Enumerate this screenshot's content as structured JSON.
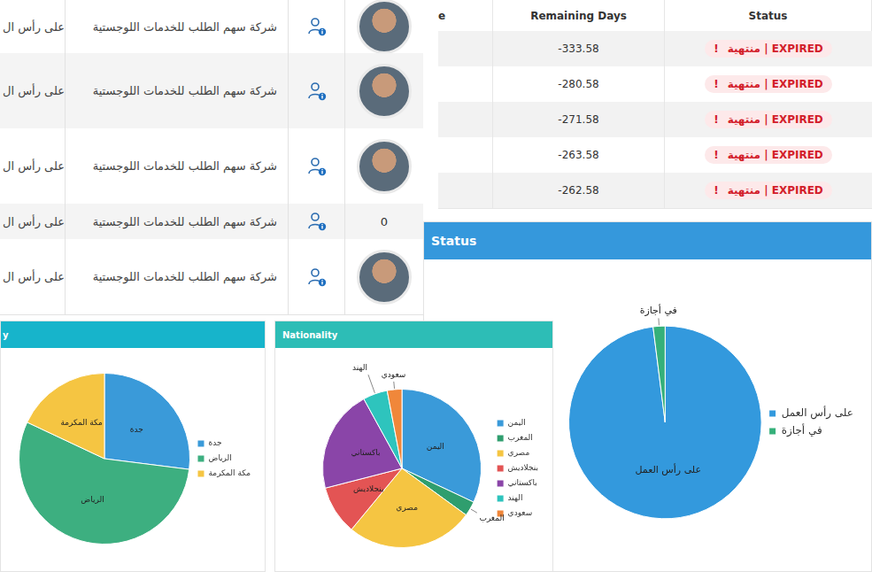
{
  "left_table": {
    "rows": [
      {
        "status": "على رأس ال",
        "company": "شركة سهم الطلب للخدمات اللوجستية"
      },
      {
        "status": "على رأس ال",
        "company": "شركة سهم الطلب للخدمات اللوجستية"
      },
      {
        "status": "على رأس ال",
        "company": "شركة سهم الطلب للخدمات اللوجستية"
      },
      {
        "status": "على رأس ال",
        "company": "شركة سهم الطلب للخدمات اللوجستية",
        "number": 0
      },
      {
        "status": "على رأس ال",
        "company": "شركة سهم الطلب للخدمات اللوجستية"
      }
    ]
  },
  "right_table": {
    "headers": [
      "e",
      "Remaining Days",
      "Status"
    ],
    "status_icon": "!",
    "rows": [
      {
        "remaining_days": -333.58,
        "status": "منتهية | EXPIRED"
      },
      {
        "remaining_days": -280.58,
        "status": "منتهية | EXPIRED"
      },
      {
        "remaining_days": -271.58,
        "status": "منتهية | EXPIRED"
      },
      {
        "remaining_days": -263.58,
        "status": "منتهية | EXPIRED"
      },
      {
        "remaining_days": -262.58,
        "status": "منتهية | EXPIRED"
      }
    ]
  },
  "chart_data": [
    {
      "type": "pie",
      "title": "y",
      "categories": [
        "جدة",
        "الرياض",
        "مكة المكرمة"
      ],
      "values": [
        27,
        55,
        18
      ],
      "colors": [
        "#3a9ad9",
        "#3daf80",
        "#f5c542"
      ],
      "legend": "right"
    },
    {
      "type": "pie",
      "title": "Nationality",
      "categories": [
        "اليمن",
        "المغرب",
        "مصري",
        "بنجلاديش",
        "باكستاني",
        "الهند",
        "سعودي"
      ],
      "values": [
        32,
        3,
        26,
        10,
        21,
        5,
        3
      ],
      "colors": [
        "#3a9ad9",
        "#2f9e6e",
        "#f5c542",
        "#e35454",
        "#8a45a8",
        "#2ec4bd",
        "#f0873a"
      ],
      "legend": "right"
    },
    {
      "type": "pie",
      "title": "Status",
      "categories": [
        "على رأس العمل",
        "في أجازة"
      ],
      "values": [
        98,
        2
      ],
      "colors": [
        "#3399dd",
        "#35b07a"
      ],
      "legend": "right"
    }
  ]
}
